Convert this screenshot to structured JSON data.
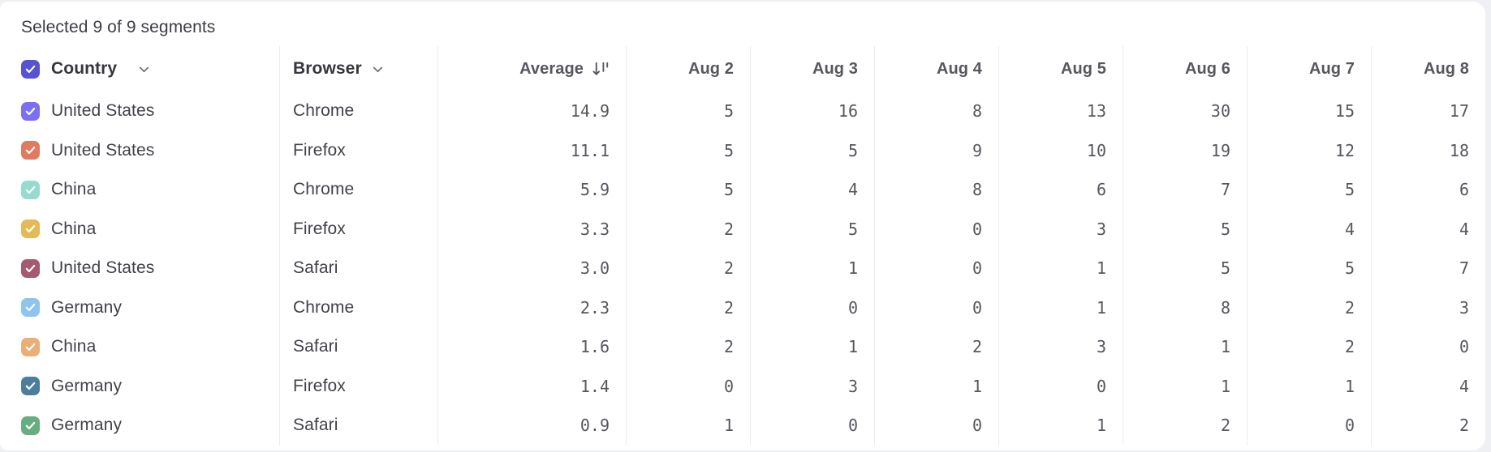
{
  "page": {
    "selection_summary": "Selected 9 of 9 segments"
  },
  "table": {
    "header": {
      "country": "Country",
      "browser": "Browser",
      "average": "Average",
      "dates": [
        "Aug 2",
        "Aug 3",
        "Aug 4",
        "Aug 5",
        "Aug 6",
        "Aug 7",
        "Aug 8"
      ],
      "select_all": {
        "checked": true,
        "color": "#5751d5"
      }
    },
    "rows": [
      {
        "checked": true,
        "color": "#7b70f3",
        "country": "United States",
        "browser": "Chrome",
        "average": "14.9",
        "values": [
          "5",
          "16",
          "8",
          "13",
          "30",
          "15",
          "17"
        ]
      },
      {
        "checked": true,
        "color": "#e07b61",
        "country": "United States",
        "browser": "Firefox",
        "average": "11.1",
        "values": [
          "5",
          "5",
          "9",
          "10",
          "19",
          "12",
          "18"
        ]
      },
      {
        "checked": true,
        "color": "#96dbce",
        "country": "China",
        "browser": "Chrome",
        "average": "5.9",
        "values": [
          "5",
          "4",
          "8",
          "6",
          "7",
          "5",
          "6"
        ]
      },
      {
        "checked": true,
        "color": "#e3ba55",
        "country": "China",
        "browser": "Firefox",
        "average": "3.3",
        "values": [
          "2",
          "5",
          "0",
          "3",
          "5",
          "4",
          "4"
        ]
      },
      {
        "checked": true,
        "color": "#a65a6f",
        "country": "United States",
        "browser": "Safari",
        "average": "3.0",
        "values": [
          "2",
          "1",
          "0",
          "1",
          "5",
          "5",
          "7"
        ]
      },
      {
        "checked": true,
        "color": "#8fc4ef",
        "country": "Germany",
        "browser": "Chrome",
        "average": "2.3",
        "values": [
          "2",
          "0",
          "0",
          "1",
          "8",
          "2",
          "3"
        ]
      },
      {
        "checked": true,
        "color": "#eaaf77",
        "country": "China",
        "browser": "Safari",
        "average": "1.6",
        "values": [
          "2",
          "1",
          "2",
          "3",
          "1",
          "2",
          "0"
        ]
      },
      {
        "checked": true,
        "color": "#4d7d9d",
        "country": "Germany",
        "browser": "Firefox",
        "average": "1.4",
        "values": [
          "0",
          "3",
          "1",
          "0",
          "1",
          "1",
          "4"
        ]
      },
      {
        "checked": true,
        "color": "#66ae81",
        "country": "Germany",
        "browser": "Safari",
        "average": "0.9",
        "values": [
          "1",
          "0",
          "0",
          "1",
          "2",
          "0",
          "2"
        ]
      }
    ]
  },
  "icons": {
    "column_chevron": "chevron-down-icon",
    "average_sort": "sort-descending-icon",
    "checkbox_check": "check-icon"
  },
  "colors": {
    "background": "#eff0f3",
    "card": "#ffffff",
    "separator": "#ececef",
    "select_all_checkbox": "#5751d5",
    "header_text": "#36363d",
    "date_header_text": "#565660",
    "row_label_text": "#41414a",
    "number_text": "#56565e"
  }
}
